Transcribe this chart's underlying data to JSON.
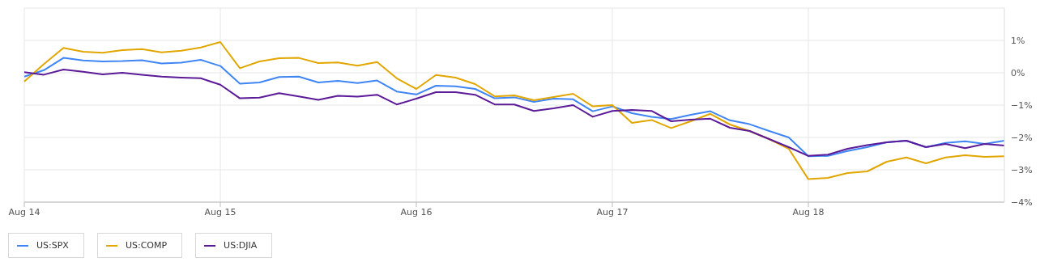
{
  "chart_data": {
    "type": "line",
    "categories": [
      "Aug 14",
      null,
      null,
      null,
      null,
      null,
      null,
      null,
      null,
      null,
      "Aug 15",
      null,
      null,
      null,
      null,
      null,
      null,
      null,
      null,
      null,
      "Aug 16",
      null,
      null,
      null,
      null,
      null,
      null,
      null,
      null,
      null,
      "Aug 17",
      null,
      null,
      null,
      null,
      null,
      null,
      null,
      null,
      null,
      "Aug 18",
      null,
      null,
      null,
      null,
      null,
      null,
      null,
      null,
      null,
      null
    ],
    "ylim": [
      -4,
      2
    ],
    "yticks": [
      {
        "value": -4,
        "label": "−4%"
      },
      {
        "value": -3,
        "label": "−3%"
      },
      {
        "value": -2,
        "label": "−2%"
      },
      {
        "value": -1,
        "label": "−1%"
      },
      {
        "value": 0,
        "label": "0%"
      },
      {
        "value": 1,
        "label": "1%"
      }
    ],
    "grid": true,
    "legend": "bottom left",
    "marker": "none",
    "line_style": "solid",
    "series": [
      {
        "name": "US:SPX",
        "color": "#3f86f4",
        "values": [
          -0.12,
          0.08,
          0.46,
          0.38,
          0.35,
          0.36,
          0.39,
          0.29,
          0.31,
          0.4,
          0.21,
          -0.34,
          -0.3,
          -0.13,
          -0.12,
          -0.3,
          -0.25,
          -0.32,
          -0.24,
          -0.58,
          -0.67,
          -0.4,
          -0.42,
          -0.5,
          -0.79,
          -0.76,
          -0.9,
          -0.8,
          -0.82,
          -1.19,
          -1.04,
          -1.25,
          -1.36,
          -1.43,
          -1.3,
          -1.19,
          -1.47,
          -1.59,
          -1.8,
          -2.0,
          -2.58,
          -2.57,
          -2.42,
          -2.3,
          -2.15,
          -2.1,
          -2.3,
          -2.17,
          -2.12,
          -2.2,
          -2.1
        ]
      },
      {
        "name": "US:COMP",
        "color": "#e2a600",
        "values": [
          -0.27,
          0.27,
          0.77,
          0.65,
          0.62,
          0.7,
          0.73,
          0.63,
          0.68,
          0.78,
          0.95,
          0.14,
          0.35,
          0.45,
          0.46,
          0.3,
          0.32,
          0.22,
          0.33,
          -0.17,
          -0.5,
          -0.07,
          -0.15,
          -0.35,
          -0.73,
          -0.7,
          -0.85,
          -0.75,
          -0.65,
          -1.04,
          -1.0,
          -1.55,
          -1.46,
          -1.71,
          -1.5,
          -1.27,
          -1.6,
          -1.8,
          -2.05,
          -2.35,
          -3.29,
          -3.25,
          -3.1,
          -3.05,
          -2.75,
          -2.62,
          -2.8,
          -2.62,
          -2.55,
          -2.6,
          -2.58
        ]
      },
      {
        "name": "US:DJIA",
        "color": "#5b1a98",
        "values": [
          0.02,
          -0.06,
          0.1,
          0.03,
          -0.05,
          0,
          -0.06,
          -0.12,
          -0.15,
          -0.17,
          -0.37,
          -0.79,
          -0.77,
          -0.63,
          -0.73,
          -0.84,
          -0.71,
          -0.74,
          -0.68,
          -0.98,
          -0.8,
          -0.6,
          -0.6,
          -0.68,
          -0.98,
          -0.98,
          -1.18,
          -1.1,
          -1.0,
          -1.36,
          -1.18,
          -1.15,
          -1.18,
          -1.5,
          -1.45,
          -1.42,
          -1.7,
          -1.8,
          -2.05,
          -2.3,
          -2.57,
          -2.53,
          -2.35,
          -2.24,
          -2.15,
          -2.1,
          -2.3,
          -2.2,
          -2.33,
          -2.2,
          -2.25
        ]
      }
    ]
  }
}
